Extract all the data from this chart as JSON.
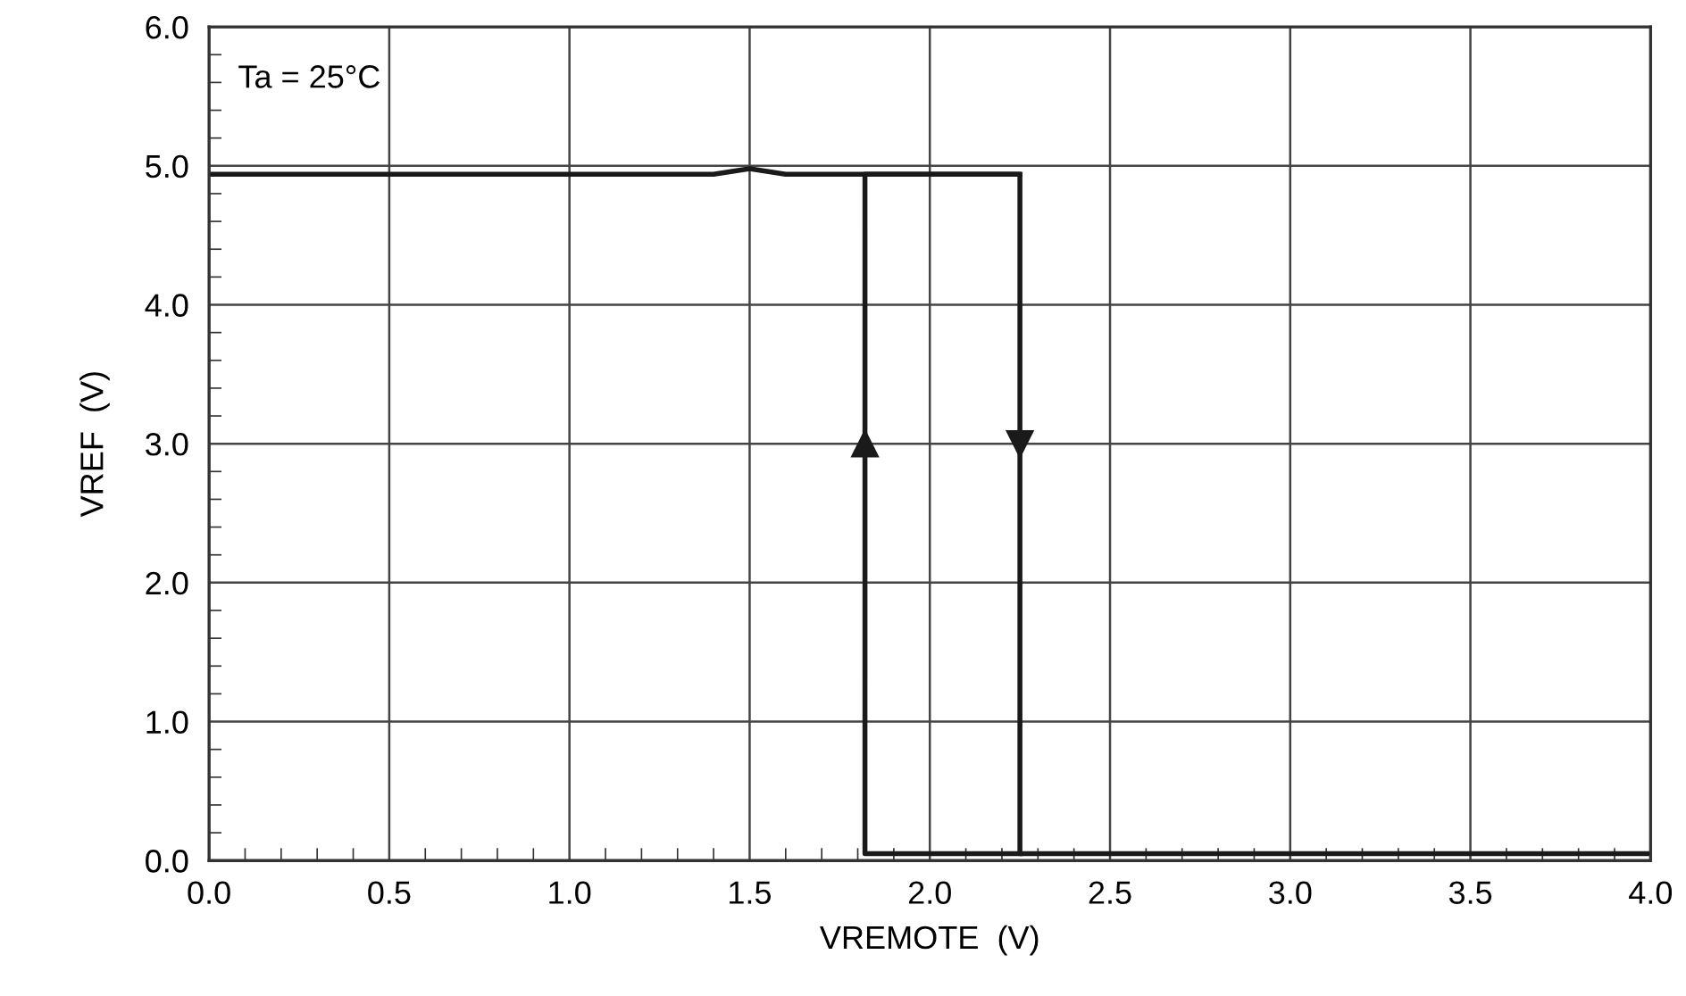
{
  "chart_data": {
    "type": "line",
    "xlabel": "VREMOTE  (V)",
    "ylabel": "VREF  (V)",
    "annotations": [
      "Ta = 25°C"
    ],
    "xlim": [
      0,
      4.0
    ],
    "ylim": [
      0,
      6.0
    ],
    "xticks": [
      {
        "value": 0,
        "label": "0.0"
      },
      {
        "value": 0.5,
        "label": "0.5"
      },
      {
        "value": 1.0,
        "label": "1.0"
      },
      {
        "value": 1.5,
        "label": "1.5"
      },
      {
        "value": 2.0,
        "label": "2.0"
      },
      {
        "value": 2.5,
        "label": "2.5"
      },
      {
        "value": 3.0,
        "label": "3.0"
      },
      {
        "value": 3.5,
        "label": "3.5"
      },
      {
        "value": 4.0,
        "label": "4.0"
      }
    ],
    "yticks": [
      {
        "value": 0,
        "label": "0.0"
      },
      {
        "value": 1.0,
        "label": "1.0"
      },
      {
        "value": 2.0,
        "label": "2.0"
      },
      {
        "value": 3.0,
        "label": "3.0"
      },
      {
        "value": 4.0,
        "label": "4.0"
      },
      {
        "value": 5.0,
        "label": "5.0"
      },
      {
        "value": 6.0,
        "label": "6.0"
      }
    ],
    "grid": true,
    "marker": "none",
    "line_style": "solid",
    "series": [
      {
        "color": "#1a1a1a",
        "x": [
          0,
          1.4,
          1.5,
          1.6,
          2.25,
          2.25,
          4.0
        ],
        "values": [
          4.94,
          4.94,
          4.98,
          4.94,
          4.94,
          0.05,
          0.05
        ]
      },
      {
        "color": "#1a1a1a",
        "x": [
          2.25,
          1.82,
          1.82,
          2.25
        ],
        "values": [
          0.05,
          0.05,
          4.94,
          4.94
        ]
      }
    ]
  }
}
